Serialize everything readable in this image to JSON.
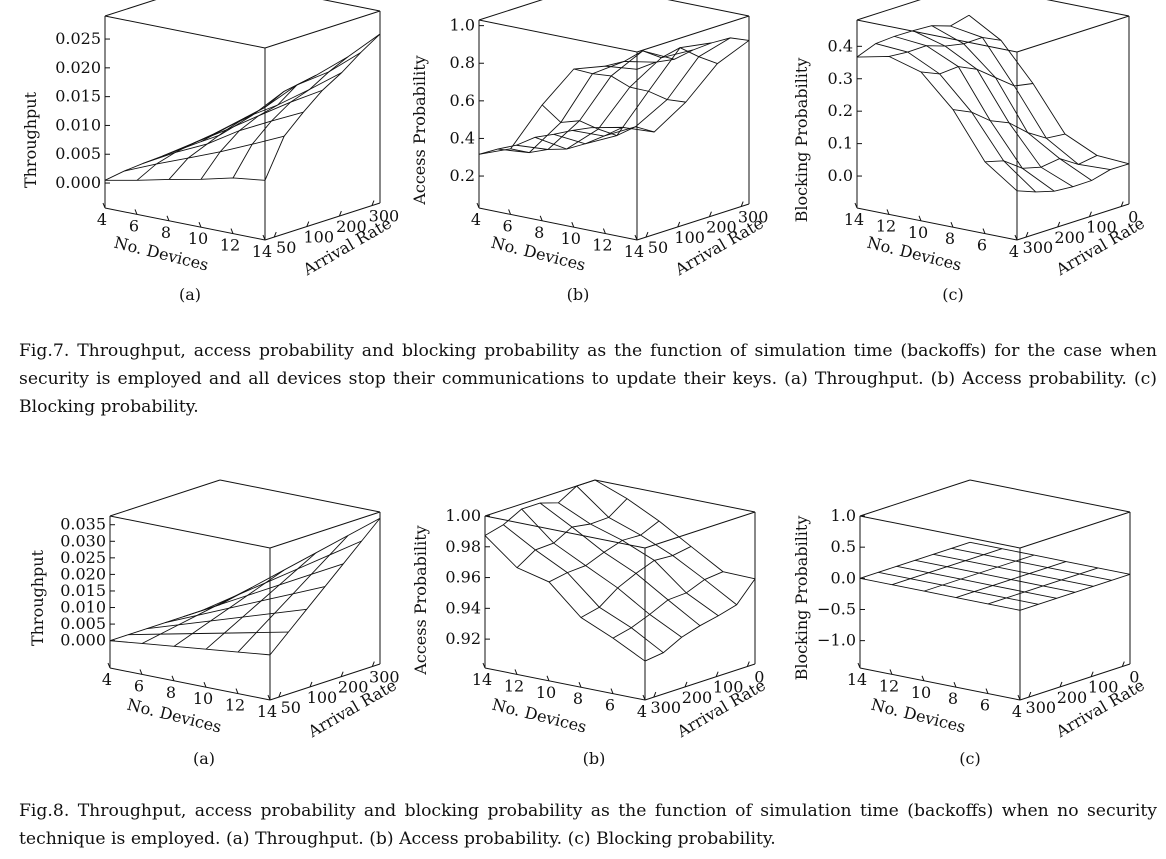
{
  "figure7": {
    "caption_label": "Fig.7.",
    "caption_text": "Throughput, access probability and blocking probability as the function of simulation time (backoffs) for the case when security is employed and all devices stop their communications to update their keys. (a) Throughput. (b) Access probability. (c) Blocking probability.",
    "subfig_labels": [
      "(a)",
      "(b)",
      "(c)"
    ]
  },
  "figure8": {
    "caption_label": "Fig.8.",
    "caption_text": "Throughput, access probability and blocking probability as the function of simulation time (backoffs) when no security technique is employed. (a) Throughput. (b) Access probability. (c) Blocking probability.",
    "subfig_labels": [
      "(a)",
      "(b)",
      "(c)"
    ]
  },
  "chart_data": [
    {
      "id": "fig7a",
      "type": "surface",
      "zlabel": "Throughput",
      "xlabel": "No. Devices",
      "ylabel": "Arrival Rate",
      "x_ticks": [
        "4",
        "6",
        "8",
        "10",
        "12",
        "14"
      ],
      "y_ticks": [
        "50",
        "100",
        "200",
        "300"
      ],
      "z_ticks": [
        "0.000",
        "0.005",
        "0.010",
        "0.015",
        "0.020",
        "0.025"
      ],
      "x_range": [
        4,
        14
      ],
      "y_range": [
        0,
        320
      ],
      "z_range": [
        0,
        0.03
      ],
      "grid": false
    },
    {
      "id": "fig7b",
      "type": "surface",
      "zlabel": "Access Probability",
      "xlabel": "No. Devices",
      "ylabel": "Arrival Rate",
      "x_ticks": [
        "4",
        "6",
        "8",
        "10",
        "12",
        "14"
      ],
      "y_ticks": [
        "50",
        "100",
        "200",
        "300"
      ],
      "z_ticks": [
        "0.2",
        "0.4",
        "0.6",
        "0.8",
        "1.0"
      ],
      "x_range": [
        4,
        14
      ],
      "y_range": [
        0,
        320
      ],
      "z_range": [
        0.2,
        1.0
      ],
      "grid": false
    },
    {
      "id": "fig7c",
      "type": "surface",
      "zlabel": "Blocking Probability",
      "xlabel": "No. Devices",
      "ylabel": "Arrival Rate",
      "x_ticks": [
        "14",
        "12",
        "10",
        "8",
        "6",
        "4"
      ],
      "y_ticks": [
        "300",
        "200",
        "100",
        "0"
      ],
      "z_ticks": [
        "0.0",
        "0.1",
        "0.2",
        "0.3",
        "0.4"
      ],
      "x_range": [
        4,
        14
      ],
      "y_range": [
        0,
        320
      ],
      "z_range": [
        0,
        0.48
      ],
      "grid": false
    },
    {
      "id": "fig8a",
      "type": "surface",
      "zlabel": "Throughput",
      "xlabel": "No. Devices",
      "ylabel": "Arrival Rate",
      "x_ticks": [
        "4",
        "6",
        "8",
        "10",
        "12",
        "14"
      ],
      "y_ticks": [
        "50",
        "100",
        "200",
        "300"
      ],
      "z_ticks": [
        "0.000",
        "0.005",
        "0.010",
        "0.015",
        "0.020",
        "0.025",
        "0.030",
        "0.035"
      ],
      "x_range": [
        4,
        14
      ],
      "y_range": [
        0,
        320
      ],
      "z_range": [
        0,
        0.037
      ],
      "grid": false
    },
    {
      "id": "fig8b",
      "type": "surface",
      "zlabel": "Access Probability",
      "xlabel": "No. Devices",
      "ylabel": "Arrival Rate",
      "x_ticks": [
        "14",
        "12",
        "10",
        "8",
        "6",
        "4"
      ],
      "y_ticks": [
        "300",
        "200",
        "100",
        "0"
      ],
      "z_ticks": [
        "0.92",
        "0.94",
        "0.96",
        "0.98",
        "1.00"
      ],
      "x_range": [
        4,
        14
      ],
      "y_range": [
        0,
        320
      ],
      "z_range": [
        0.92,
        1.0
      ],
      "grid": false
    },
    {
      "id": "fig8c",
      "type": "surface",
      "zlabel": "Blocking Probability",
      "xlabel": "No. Devices",
      "ylabel": "Arrival Rate",
      "x_ticks": [
        "14",
        "12",
        "10",
        "8",
        "6",
        "4"
      ],
      "y_ticks": [
        "300",
        "200",
        "100",
        "0"
      ],
      "z_ticks": [
        "−1.0",
        "−0.5",
        "0.0",
        "0.5",
        "1.0"
      ],
      "x_range": [
        4,
        14
      ],
      "y_range": [
        0,
        320
      ],
      "z_range": [
        -1.0,
        1.0
      ],
      "grid": false
    }
  ]
}
